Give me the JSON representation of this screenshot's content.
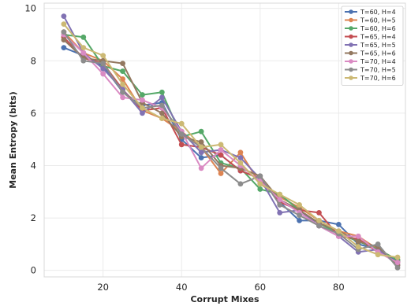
{
  "chart_data": {
    "type": "line",
    "title": "",
    "xlabel": "Corrupt Mixes",
    "ylabel": "Mean Entropy (bits)",
    "xlim": [
      5,
      97
    ],
    "ylim": [
      -0.25,
      10.2
    ],
    "xticks": [
      20,
      40,
      60,
      80
    ],
    "yticks": [
      0,
      2,
      4,
      6,
      8,
      10
    ],
    "grid": true,
    "legend_position": "top-right",
    "x": [
      10,
      15,
      20,
      25,
      30,
      35,
      40,
      45,
      50,
      55,
      60,
      65,
      70,
      75,
      80,
      85,
      90,
      95
    ],
    "series": [
      {
        "name": "T=60, H=4",
        "color": "#4c72b0",
        "values": [
          8.5,
          8.2,
          7.8,
          6.8,
          6.3,
          6.4,
          5.0,
          4.3,
          4.4,
          3.8,
          3.5,
          2.6,
          1.9,
          1.9,
          1.75,
          1.0,
          0.8,
          0.35
        ]
      },
      {
        "name": "T=60, H=5",
        "color": "#dd8452",
        "values": [
          9.1,
          8.3,
          8.0,
          7.3,
          6.1,
          5.8,
          5.3,
          4.7,
          3.7,
          4.5,
          3.3,
          2.8,
          2.4,
          1.9,
          1.5,
          1.3,
          0.8,
          0.4
        ]
      },
      {
        "name": "T=60, H=6",
        "color": "#55a868",
        "values": [
          9.0,
          8.9,
          7.8,
          7.6,
          6.7,
          6.8,
          5.1,
          5.3,
          4.1,
          3.9,
          3.1,
          2.9,
          2.3,
          1.8,
          1.4,
          1.1,
          0.8,
          0.4
        ]
      },
      {
        "name": "T=65, H=4",
        "color": "#c44e52",
        "values": [
          8.9,
          8.1,
          7.9,
          6.9,
          6.1,
          6.2,
          4.8,
          4.7,
          4.4,
          3.8,
          3.5,
          2.6,
          2.3,
          2.2,
          1.3,
          1.2,
          0.7,
          0.3
        ]
      },
      {
        "name": "T=65, H=5",
        "color": "#8172b3",
        "values": [
          9.7,
          8.3,
          7.7,
          6.9,
          6.0,
          6.6,
          5.3,
          4.5,
          4.6,
          4.3,
          3.5,
          2.2,
          2.3,
          1.7,
          1.3,
          0.7,
          0.8,
          0.2
        ]
      },
      {
        "name": "T=65, H=6",
        "color": "#937860",
        "values": [
          8.8,
          8.1,
          8.0,
          7.9,
          6.4,
          6.0,
          5.1,
          4.9,
          4.0,
          3.9,
          3.6,
          2.7,
          2.3,
          1.8,
          1.5,
          1.1,
          0.9,
          0.2
        ]
      },
      {
        "name": "T=70, H=4",
        "color": "#da8bc3",
        "values": [
          9.0,
          8.3,
          7.5,
          6.6,
          6.5,
          6.2,
          5.3,
          3.9,
          4.6,
          4.0,
          3.4,
          2.7,
          2.2,
          1.7,
          1.3,
          1.3,
          0.7,
          0.3
        ]
      },
      {
        "name": "T=70, H=5",
        "color": "#8c8c8c",
        "values": [
          9.1,
          8.0,
          7.9,
          6.8,
          6.2,
          6.3,
          5.2,
          4.7,
          3.9,
          3.3,
          3.6,
          2.5,
          2.1,
          1.7,
          1.4,
          0.8,
          1.0,
          0.1
        ]
      },
      {
        "name": "T=70, H=6",
        "color": "#ccb974",
        "values": [
          9.4,
          8.5,
          8.2,
          7.1,
          6.2,
          5.8,
          5.6,
          4.7,
          4.8,
          4.1,
          3.3,
          2.9,
          2.5,
          1.9,
          1.5,
          0.9,
          0.6,
          0.5
        ]
      }
    ]
  }
}
